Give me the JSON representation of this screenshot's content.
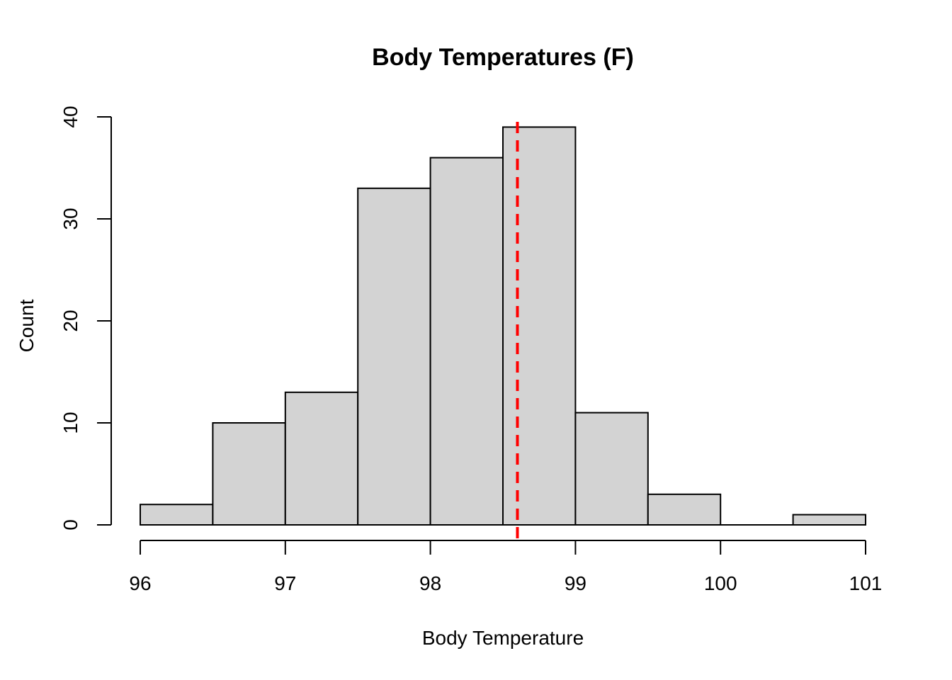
{
  "chart_data": {
    "type": "bar",
    "subtype": "histogram",
    "title": "Body Temperatures (F)",
    "xlabel": "Body Temperature",
    "ylabel": "Count",
    "xlim": [
      96,
      101
    ],
    "ylim": [
      0,
      40
    ],
    "x_ticks": [
      96,
      97,
      98,
      99,
      100,
      101
    ],
    "y_ticks": [
      0,
      10,
      20,
      30,
      40
    ],
    "bins": [
      {
        "start": 96.0,
        "end": 96.5,
        "count": 2
      },
      {
        "start": 96.5,
        "end": 97.0,
        "count": 10
      },
      {
        "start": 97.0,
        "end": 97.5,
        "count": 13
      },
      {
        "start": 97.5,
        "end": 98.0,
        "count": 33
      },
      {
        "start": 98.0,
        "end": 98.5,
        "count": 36
      },
      {
        "start": 98.5,
        "end": 99.0,
        "count": 39
      },
      {
        "start": 99.0,
        "end": 99.5,
        "count": 11
      },
      {
        "start": 99.5,
        "end": 100.0,
        "count": 3
      },
      {
        "start": 100.0,
        "end": 100.5,
        "count": 0
      },
      {
        "start": 100.5,
        "end": 101.0,
        "count": 1
      }
    ],
    "reference_line": {
      "x": 98.6,
      "style": "dashed",
      "color": "#ff0000"
    },
    "bar_color": "#d3d3d3",
    "grid": false
  }
}
